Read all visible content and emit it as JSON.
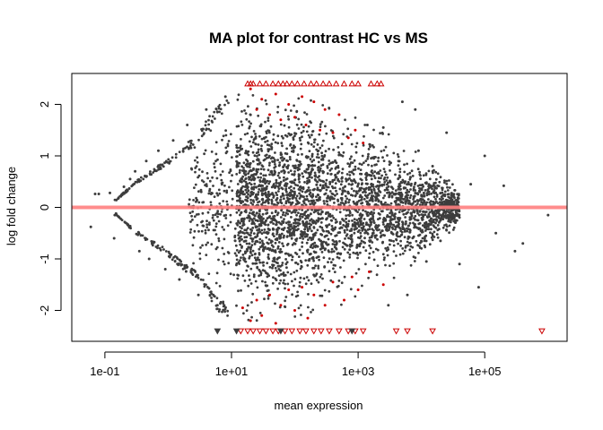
{
  "chart_data": {
    "type": "scatter",
    "title": "MA plot for contrast HC vs MS",
    "xlabel": "mean expression",
    "ylabel": "log fold change",
    "x_scale": "log10",
    "xlim": [
      0.03,
      2000000
    ],
    "ylim": [
      -2.6,
      2.6
    ],
    "x_ticks": [
      {
        "value": 0.1,
        "label": "1e-01"
      },
      {
        "value": 10,
        "label": "1e+01"
      },
      {
        "value": 1000,
        "label": "1e+03"
      },
      {
        "value": 100000,
        "label": "1e+05"
      }
    ],
    "y_ticks": [
      {
        "value": -2,
        "label": "-2"
      },
      {
        "value": -1,
        "label": "-1"
      },
      {
        "value": 0,
        "label": "0"
      },
      {
        "value": 1,
        "label": "1"
      },
      {
        "value": 2,
        "label": "2"
      }
    ],
    "reference_line": {
      "y": 0,
      "color": "#ff8080"
    },
    "clip_limit": 2.4,
    "grid": false,
    "colors": {
      "not_significant": "#3d3d3d",
      "significant": "#cc0000",
      "reference": "#ff8080"
    },
    "series": [
      {
        "name": "not significant",
        "color": "#3d3d3d",
        "points": [
          {
            "x": 0.06,
            "y": -0.38
          },
          {
            "x": 0.07,
            "y": 0.26
          },
          {
            "x": 0.08,
            "y": 0.26
          },
          {
            "x": 0.12,
            "y": 0.28
          },
          {
            "x": 0.14,
            "y": -0.6
          },
          {
            "x": 0.15,
            "y": -0.12
          },
          {
            "x": 0.2,
            "y": 0.4
          },
          {
            "x": 0.25,
            "y": 0.55
          },
          {
            "x": 0.3,
            "y": 0.7
          },
          {
            "x": 0.35,
            "y": -0.85
          },
          {
            "x": 0.45,
            "y": 0.9
          },
          {
            "x": 0.5,
            "y": -1.0
          },
          {
            "x": 0.7,
            "y": 1.1
          },
          {
            "x": 0.9,
            "y": -1.2
          },
          {
            "x": 1.2,
            "y": 1.3
          },
          {
            "x": 1.5,
            "y": -1.4
          },
          {
            "x": 2.0,
            "y": 1.6
          },
          {
            "x": 3.0,
            "y": -1.7
          },
          {
            "x": 4.0,
            "y": 1.9
          },
          {
            "x": 6.0,
            "y": -1.9
          },
          {
            "x": 8.0,
            "y": 2.15
          },
          {
            "x": 1400,
            "y": 1.6
          },
          {
            "x": 2500,
            "y": 1.55
          },
          {
            "x": 3000,
            "y": -1.9
          },
          {
            "x": 5000,
            "y": 2.05
          },
          {
            "x": 6000,
            "y": -1.7
          },
          {
            "x": 8000,
            "y": 1.9
          },
          {
            "x": 9000,
            "y": 1.1
          },
          {
            "x": 12000,
            "y": -1.05
          },
          {
            "x": 15000,
            "y": 0.8
          },
          {
            "x": 20000,
            "y": -0.65
          },
          {
            "x": 25000,
            "y": 1.45
          },
          {
            "x": 35000,
            "y": -0.25
          },
          {
            "x": 40000,
            "y": -1.1
          },
          {
            "x": 60000,
            "y": 0.45
          },
          {
            "x": 80000,
            "y": -1.55
          },
          {
            "x": 100000,
            "y": 1.0
          },
          {
            "x": 150000,
            "y": -0.5
          },
          {
            "x": 200000,
            "y": 0.42
          },
          {
            "x": 300000,
            "y": -0.85
          },
          {
            "x": 400000,
            "y": -0.7
          },
          {
            "x": 1000000,
            "y": -0.15
          }
        ],
        "cloud": {
          "x_range": [
            0.15,
            40000
          ],
          "envelope": [
            [
              0.15,
              0.15
            ],
            [
              0.3,
              0.5
            ],
            [
              1,
              0.95
            ],
            [
              3,
              1.45
            ],
            [
              6,
              2.0
            ],
            [
              10,
              2.2
            ],
            [
              100,
              2.2
            ],
            [
              1000,
              1.8
            ],
            [
              5000,
              1.3
            ],
            [
              20000,
              0.7
            ],
            [
              40000,
              0.35
            ]
          ]
        }
      },
      {
        "name": "significant",
        "color": "#cc0000",
        "points": [
          {
            "x": 20,
            "y": 2.3
          },
          {
            "x": 25,
            "y": 1.9
          },
          {
            "x": 30,
            "y": 2.1
          },
          {
            "x": 40,
            "y": 1.8
          },
          {
            "x": 50,
            "y": 2.2
          },
          {
            "x": 60,
            "y": 1.7
          },
          {
            "x": 80,
            "y": 2.0
          },
          {
            "x": 100,
            "y": 1.75
          },
          {
            "x": 130,
            "y": 2.15
          },
          {
            "x": 150,
            "y": 1.6
          },
          {
            "x": 200,
            "y": 2.05
          },
          {
            "x": 250,
            "y": 1.5
          },
          {
            "x": 300,
            "y": 1.9
          },
          {
            "x": 400,
            "y": 1.45
          },
          {
            "x": 500,
            "y": 1.8
          },
          {
            "x": 700,
            "y": 1.35
          },
          {
            "x": 900,
            "y": 1.5
          },
          {
            "x": 1200,
            "y": 1.25
          },
          {
            "x": 15,
            "y": -1.95
          },
          {
            "x": 20,
            "y": -2.2
          },
          {
            "x": 25,
            "y": -1.8
          },
          {
            "x": 30,
            "y": -2.1
          },
          {
            "x": 40,
            "y": -1.7
          },
          {
            "x": 50,
            "y": -2.25
          },
          {
            "x": 60,
            "y": -1.9
          },
          {
            "x": 80,
            "y": -1.6
          },
          {
            "x": 100,
            "y": -2.0
          },
          {
            "x": 130,
            "y": -1.55
          },
          {
            "x": 160,
            "y": -2.15
          },
          {
            "x": 200,
            "y": -1.7
          },
          {
            "x": 300,
            "y": -1.9
          },
          {
            "x": 400,
            "y": -1.45
          },
          {
            "x": 600,
            "y": -1.8
          },
          {
            "x": 800,
            "y": -1.35
          },
          {
            "x": 1000,
            "y": -1.6
          },
          {
            "x": 1500,
            "y": -1.25
          },
          {
            "x": 2500,
            "y": -1.5
          }
        ]
      },
      {
        "name": "significant, above limit",
        "shape": "triangle-up",
        "color": "#cc0000",
        "points": [
          {
            "x": 18,
            "y": 2.4
          },
          {
            "x": 20,
            "y": 2.4
          },
          {
            "x": 22,
            "y": 2.4
          },
          {
            "x": 28,
            "y": 2.4
          },
          {
            "x": 35,
            "y": 2.4
          },
          {
            "x": 45,
            "y": 2.4
          },
          {
            "x": 55,
            "y": 2.4
          },
          {
            "x": 65,
            "y": 2.4
          },
          {
            "x": 75,
            "y": 2.4
          },
          {
            "x": 90,
            "y": 2.4
          },
          {
            "x": 110,
            "y": 2.4
          },
          {
            "x": 140,
            "y": 2.4
          },
          {
            "x": 180,
            "y": 2.4
          },
          {
            "x": 220,
            "y": 2.4
          },
          {
            "x": 280,
            "y": 2.4
          },
          {
            "x": 350,
            "y": 2.4
          },
          {
            "x": 450,
            "y": 2.4
          },
          {
            "x": 600,
            "y": 2.4
          },
          {
            "x": 800,
            "y": 2.4
          },
          {
            "x": 1000,
            "y": 2.4
          },
          {
            "x": 1600,
            "y": 2.4
          },
          {
            "x": 2000,
            "y": 2.4
          },
          {
            "x": 2300,
            "y": 2.4
          }
        ]
      },
      {
        "name": "significant, below limit",
        "shape": "triangle-down",
        "color": "#cc0000",
        "points": [
          {
            "x": 14,
            "y": -2.4
          },
          {
            "x": 18,
            "y": -2.4
          },
          {
            "x": 22,
            "y": -2.4
          },
          {
            "x": 28,
            "y": -2.4
          },
          {
            "x": 35,
            "y": -2.4
          },
          {
            "x": 45,
            "y": -2.4
          },
          {
            "x": 55,
            "y": -2.4
          },
          {
            "x": 70,
            "y": -2.4
          },
          {
            "x": 90,
            "y": -2.4
          },
          {
            "x": 120,
            "y": -2.4
          },
          {
            "x": 150,
            "y": -2.4
          },
          {
            "x": 200,
            "y": -2.4
          },
          {
            "x": 260,
            "y": -2.4
          },
          {
            "x": 350,
            "y": -2.4
          },
          {
            "x": 500,
            "y": -2.4
          },
          {
            "x": 700,
            "y": -2.4
          },
          {
            "x": 900,
            "y": -2.4
          },
          {
            "x": 1200,
            "y": -2.4
          },
          {
            "x": 4000,
            "y": -2.4
          },
          {
            "x": 6000,
            "y": -2.4
          },
          {
            "x": 15000,
            "y": -2.4
          },
          {
            "x": 800000,
            "y": -2.4
          }
        ]
      },
      {
        "name": "not significant, below limit",
        "shape": "triangle-down",
        "color": "#3d3d3d",
        "points": [
          {
            "x": 6,
            "y": -2.4
          },
          {
            "x": 12,
            "y": -2.4
          },
          {
            "x": 60,
            "y": -2.4
          },
          {
            "x": 800,
            "y": -2.4
          }
        ]
      }
    ]
  }
}
